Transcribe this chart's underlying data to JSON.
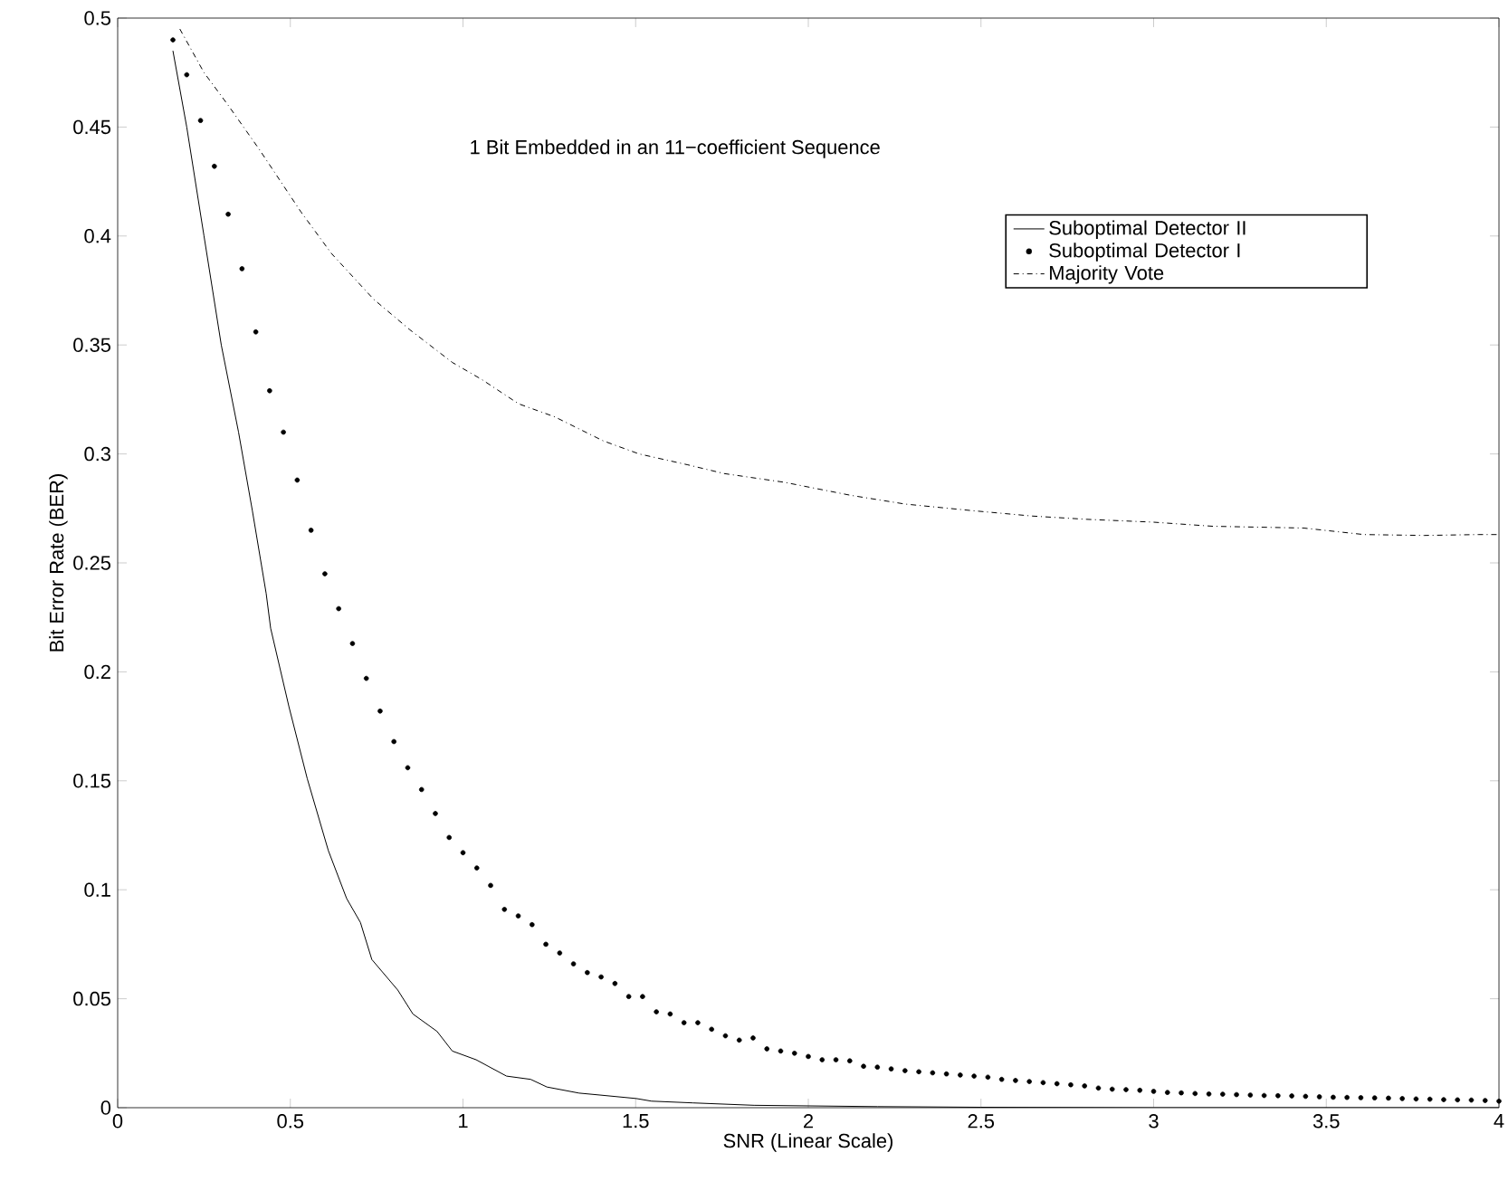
{
  "chart_data": {
    "type": "line",
    "xlabel": "SNR (Linear Scale)",
    "ylabel": "Bit Error Rate (BER)",
    "annotations": [
      "1 Bit Embedded in an 11−coefficient Sequence"
    ],
    "xlim": [
      0,
      4
    ],
    "ylim": [
      0,
      0.5
    ],
    "xticks": [
      0,
      0.5,
      1,
      1.5,
      2,
      2.5,
      3,
      3.5,
      4
    ],
    "yticks": [
      0,
      0.05,
      0.1,
      0.15,
      0.2,
      0.25,
      0.3,
      0.35,
      0.4,
      0.45,
      0.5
    ],
    "grid": false,
    "legend": "top right",
    "series": [
      {
        "name": "Suboptimal Detector II",
        "line_style": "solid",
        "marker": "none",
        "color": "#000000",
        "x": [
          0.16,
          0.2,
          0.25,
          0.3,
          0.35,
          0.39,
          0.43,
          0.443,
          0.496,
          0.549,
          0.61,
          0.663,
          0.703,
          0.736,
          0.811,
          0.855,
          0.925,
          0.969,
          1.038,
          1.126,
          1.196,
          1.243,
          1.336,
          1.397,
          1.502,
          1.546,
          1.666,
          1.843,
          2.2,
          2.5,
          3,
          3.5,
          4
        ],
        "values": [
          0.485,
          0.45,
          0.4,
          0.35,
          0.31,
          0.274,
          0.236,
          0.22,
          0.184,
          0.151,
          0.118,
          0.096,
          0.085,
          0.068,
          0.054,
          0.043,
          0.035,
          0.026,
          0.022,
          0.0145,
          0.013,
          0.0095,
          0.0067,
          0.0058,
          0.0042,
          0.003,
          0.0022,
          0.0011,
          0.0005,
          0.0002,
          0,
          0,
          0
        ]
      },
      {
        "name": "Suboptimal Detector I",
        "type": "scatter",
        "marker": "circle",
        "color": "#000000",
        "x": [
          0.16,
          0.2,
          0.24,
          0.28,
          0.32,
          0.36,
          0.4,
          0.44,
          0.48,
          0.52,
          0.56,
          0.6,
          0.64,
          0.68,
          0.72,
          0.76,
          0.8,
          0.84,
          0.88,
          0.92,
          0.96,
          1.0,
          1.04,
          1.08,
          1.12,
          1.16,
          1.2,
          1.24,
          1.28,
          1.32,
          1.36,
          1.4,
          1.44,
          1.48,
          1.52,
          1.56,
          1.6,
          1.64,
          1.68,
          1.72,
          1.76,
          1.8,
          1.84,
          1.88,
          1.92,
          1.96,
          2.0,
          2.04,
          2.08,
          2.12,
          2.16,
          2.2,
          2.24,
          2.28,
          2.32,
          2.36,
          2.4,
          2.44,
          2.48,
          2.52,
          2.56,
          2.6,
          2.64,
          2.68,
          2.72,
          2.76,
          2.8,
          2.84,
          2.88,
          2.92,
          2.96,
          3.0,
          3.04,
          3.08,
          3.12,
          3.16,
          3.2,
          3.24,
          3.28,
          3.32,
          3.36,
          3.4,
          3.44,
          3.48,
          3.52,
          3.56,
          3.6,
          3.64,
          3.68,
          3.72,
          3.76,
          3.8,
          3.84,
          3.88,
          3.92,
          3.96,
          4.0
        ],
        "values": [
          0.49,
          0.474,
          0.453,
          0.432,
          0.41,
          0.385,
          0.356,
          0.329,
          0.31,
          0.288,
          0.265,
          0.245,
          0.229,
          0.213,
          0.197,
          0.182,
          0.168,
          0.156,
          0.146,
          0.135,
          0.124,
          0.117,
          0.11,
          0.102,
          0.091,
          0.088,
          0.084,
          0.075,
          0.071,
          0.066,
          0.062,
          0.06,
          0.057,
          0.051,
          0.051,
          0.044,
          0.043,
          0.039,
          0.039,
          0.036,
          0.033,
          0.031,
          0.032,
          0.027,
          0.026,
          0.025,
          0.0235,
          0.022,
          0.022,
          0.0215,
          0.019,
          0.0186,
          0.0178,
          0.017,
          0.0165,
          0.016,
          0.0155,
          0.015,
          0.0145,
          0.014,
          0.013,
          0.0125,
          0.012,
          0.0115,
          0.011,
          0.0105,
          0.01,
          0.009,
          0.0085,
          0.0083,
          0.008,
          0.0075,
          0.007,
          0.0068,
          0.0065,
          0.0063,
          0.0062,
          0.006,
          0.0058,
          0.0056,
          0.0055,
          0.0054,
          0.0052,
          0.005,
          0.0048,
          0.0047,
          0.0046,
          0.0045,
          0.0044,
          0.0042,
          0.004,
          0.0039,
          0.0037,
          0.0036,
          0.0035,
          0.0033,
          0.003
        ]
      },
      {
        "name": "Majority Vote",
        "line_style": "dashdot",
        "marker": "none",
        "color": "#000000",
        "x": [
          0.18,
          0.25,
          0.32,
          0.409,
          0.531,
          0.619,
          0.741,
          0.846,
          0.969,
          1.056,
          1.161,
          1.266,
          1.406,
          1.51,
          1.651,
          1.756,
          1.93,
          2.123,
          2.28,
          2.473,
          2.648,
          2.805,
          2.998,
          3.172,
          3.434,
          3.609,
          3.784,
          3.94,
          4.0
        ],
        "values": [
          0.495,
          0.475,
          0.46,
          0.44,
          0.411,
          0.392,
          0.371,
          0.357,
          0.342,
          0.334,
          0.323,
          0.317,
          0.306,
          0.3,
          0.295,
          0.291,
          0.287,
          0.281,
          0.277,
          0.274,
          0.2715,
          0.27,
          0.2687,
          0.2668,
          0.266,
          0.263,
          0.2626,
          0.263,
          0.263
        ]
      }
    ]
  }
}
